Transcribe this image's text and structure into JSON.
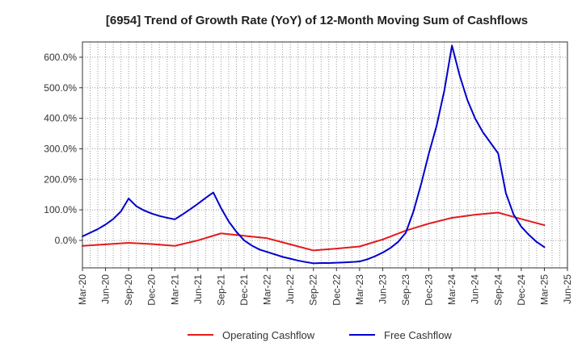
{
  "chart_data": {
    "type": "line",
    "title": "[6954]  Trend of Growth Rate (YoY) of 12-Month Moving Sum of Cashflows",
    "xlabel": "",
    "ylabel": "",
    "ylim": [
      -90,
      650
    ],
    "y_ticks": [
      0,
      100,
      200,
      300,
      400,
      500,
      600
    ],
    "y_tick_labels": [
      "0.0%",
      "100.0%",
      "200.0%",
      "300.0%",
      "400.0%",
      "500.0%",
      "600.0%"
    ],
    "x_tick_labels": [
      "Mar-20",
      "Jun-20",
      "Sep-20",
      "Dec-20",
      "Mar-21",
      "Jun-21",
      "Sep-21",
      "Dec-21",
      "Mar-22",
      "Jun-22",
      "Sep-22",
      "Dec-22",
      "Mar-23",
      "Jun-23",
      "Sep-23",
      "Dec-23",
      "Mar-24",
      "Jun-24",
      "Sep-24",
      "Dec-24",
      "Mar-25",
      "Jun-25"
    ],
    "grid": true,
    "legend_position": "bottom",
    "series": [
      {
        "name": "Operating Cashflow",
        "color": "#e31a1c",
        "points": [
          [
            "Mar-20",
            -18
          ],
          [
            "Jun-20",
            -13
          ],
          [
            "Sep-20",
            -8
          ],
          [
            "Dec-20",
            -12
          ],
          [
            "Mar-21",
            -18
          ],
          [
            "Jun-21",
            0
          ],
          [
            "Sep-21",
            23
          ],
          [
            "Dec-21",
            15
          ],
          [
            "Mar-22",
            7
          ],
          [
            "Jun-22",
            -13
          ],
          [
            "Sep-22",
            -33
          ],
          [
            "Dec-22",
            -27
          ],
          [
            "Mar-23",
            -20
          ],
          [
            "Jun-23",
            3
          ],
          [
            "Sep-23",
            32
          ],
          [
            "Dec-23",
            55
          ],
          [
            "Mar-24",
            74
          ],
          [
            "Jun-24",
            84
          ],
          [
            "Sep-24",
            91
          ],
          [
            "Dec-24",
            70
          ],
          [
            "Mar-25",
            50
          ]
        ]
      },
      {
        "name": "Free Cashflow",
        "color": "#0000cc",
        "points": [
          [
            "Mar-20",
            13
          ],
          [
            "Apr-20",
            25
          ],
          [
            "May-20",
            37
          ],
          [
            "Jun-20",
            52
          ],
          [
            "Jul-20",
            70
          ],
          [
            "Aug-20",
            95
          ],
          [
            "Sep-20",
            137
          ],
          [
            "Oct-20",
            112
          ],
          [
            "Nov-20",
            98
          ],
          [
            "Dec-20",
            88
          ],
          [
            "Jan-21",
            80
          ],
          [
            "Feb-21",
            74
          ],
          [
            "Mar-21",
            69
          ],
          [
            "Apr-21",
            85
          ],
          [
            "May-21",
            102
          ],
          [
            "Jun-21",
            120
          ],
          [
            "Jul-21",
            139
          ],
          [
            "Aug-21",
            157
          ],
          [
            "Sep-21",
            106
          ],
          [
            "Oct-21",
            62
          ],
          [
            "Nov-21",
            28
          ],
          [
            "Dec-21",
            0
          ],
          [
            "Jan-22",
            -17
          ],
          [
            "Feb-22",
            -30
          ],
          [
            "Mar-22",
            -38
          ],
          [
            "Apr-22",
            -46
          ],
          [
            "May-22",
            -54
          ],
          [
            "Jun-22",
            -60
          ],
          [
            "Jul-22",
            -66
          ],
          [
            "Aug-22",
            -71
          ],
          [
            "Sep-22",
            -75
          ],
          [
            "Oct-22",
            -74
          ],
          [
            "Nov-22",
            -74
          ],
          [
            "Dec-22",
            -73
          ],
          [
            "Jan-23",
            -72
          ],
          [
            "Feb-23",
            -71
          ],
          [
            "Mar-23",
            -69
          ],
          [
            "Apr-23",
            -62
          ],
          [
            "May-23",
            -52
          ],
          [
            "Jun-23",
            -40
          ],
          [
            "Jul-23",
            -25
          ],
          [
            "Aug-23",
            -5
          ],
          [
            "Sep-23",
            25
          ],
          [
            "Oct-23",
            95
          ],
          [
            "Nov-23",
            185
          ],
          [
            "Dec-23",
            285
          ],
          [
            "Jan-24",
            375
          ],
          [
            "Feb-24",
            490
          ],
          [
            "Mar-24",
            638
          ],
          [
            "Apr-24",
            540
          ],
          [
            "May-24",
            460
          ],
          [
            "Jun-24",
            400
          ],
          [
            "Jul-24",
            355
          ],
          [
            "Aug-24",
            320
          ],
          [
            "Sep-24",
            285
          ],
          [
            "Oct-24",
            155
          ],
          [
            "Nov-24",
            85
          ],
          [
            "Dec-24",
            45
          ],
          [
            "Jan-25",
            18
          ],
          [
            "Feb-25",
            -5
          ],
          [
            "Mar-25",
            -22
          ]
        ]
      }
    ]
  }
}
